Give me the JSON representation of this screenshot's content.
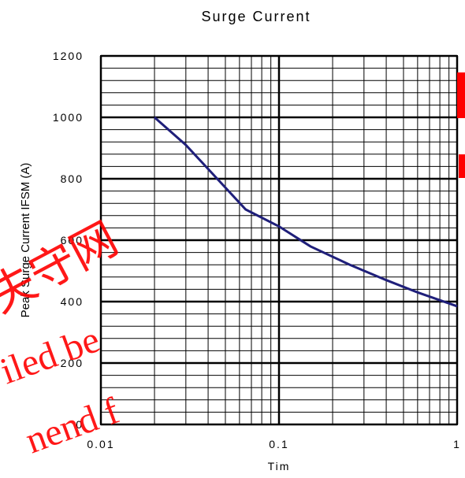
{
  "chart_data": {
    "type": "line",
    "title": "Surge Current",
    "xlabel": "Tim",
    "ylabel": "Peak Surge Current IFSM (A)",
    "x_scale": "log",
    "xlim": [
      0.01,
      1
    ],
    "ylim": [
      0,
      1200
    ],
    "x_ticks": [
      0.01,
      0.1,
      1
    ],
    "x_tick_labels": [
      "0.01",
      "0.1",
      "1"
    ],
    "y_ticks": [
      0,
      200,
      400,
      600,
      800,
      1000,
      1200
    ],
    "y_tick_labels": [
      "0",
      "200",
      "400",
      "600",
      "800",
      "1000",
      "1200"
    ],
    "grid": true,
    "series": [
      {
        "x": [
          0.02,
          0.03,
          0.045,
          0.065,
          0.1,
          0.15,
          0.25,
          0.4,
          0.6,
          1.0
        ],
        "y": [
          1000,
          910,
          800,
          700,
          645,
          580,
          520,
          470,
          430,
          385
        ]
      }
    ],
    "line_color": "#1f1f7a"
  },
  "watermark": {
    "lines": [
      "iled be",
      "nend f"
    ],
    "cjk": "失守网",
    "color": "#ff0000"
  }
}
